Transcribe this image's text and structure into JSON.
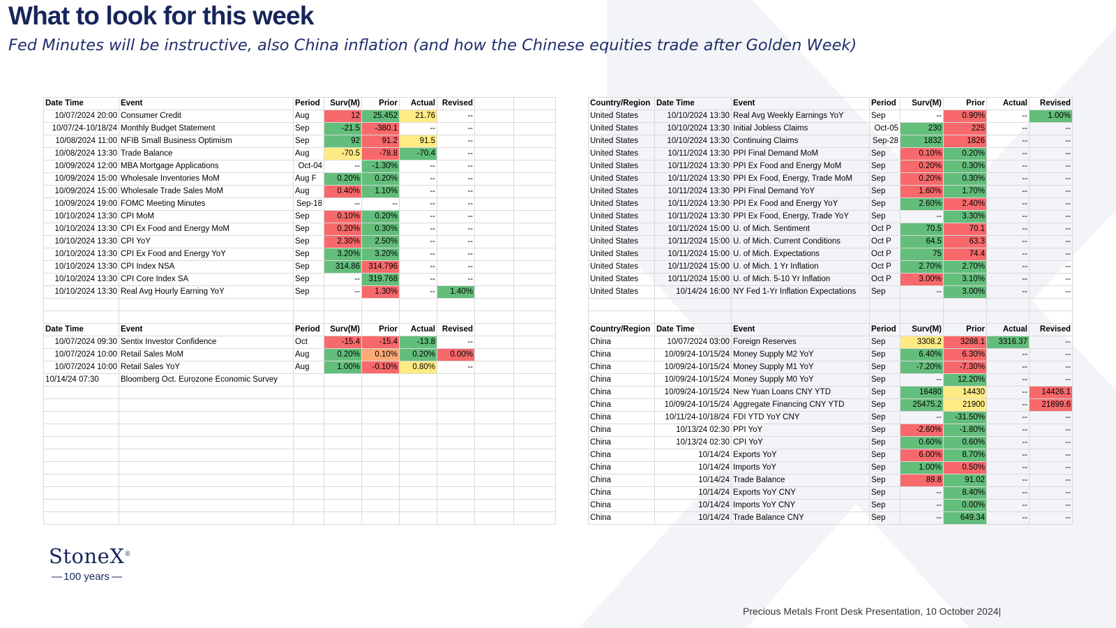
{
  "title": "What to look for this week",
  "subtitle": "Fed Minutes will be instructive, also China inflation (and how the Chinese equities trade after Golden Week)",
  "logo": {
    "name": "StoneX",
    "mark": "®",
    "tagline": "100 years"
  },
  "footer": "Precious Metals Front Desk Presentation, 10 October 2024|",
  "us_table": {
    "headers": [
      "Date Time",
      "Event",
      "Period",
      "Surv(M)",
      "Prior",
      "Actual",
      "Revised"
    ],
    "rows": [
      {
        "dt": "10/07/2024 20:00",
        "event": "Consumer Credit",
        "period": "Aug",
        "surv": "12",
        "prior": "25.452",
        "actual": "21.76",
        "revised": "--",
        "surv_c": "rd",
        "prior_c": "g",
        "actual_c": "y",
        "revised_c": ""
      },
      {
        "dt": "10/07/24-10/18/24",
        "event": "Monthly Budget Statement",
        "period": "Sep",
        "surv": "-21.5",
        "prior": "-380.1",
        "actual": "--",
        "revised": "--",
        "surv_c": "g",
        "prior_c": "rd",
        "actual_c": "",
        "revised_c": ""
      },
      {
        "dt": "10/08/2024 11:00",
        "event": "NFIB Small Business Optimism",
        "period": "Sep",
        "surv": "92",
        "prior": "91.2",
        "actual": "91.5",
        "revised": "--",
        "surv_c": "g",
        "prior_c": "rd",
        "actual_c": "y",
        "revised_c": ""
      },
      {
        "dt": "10/08/2024 13:30",
        "event": "Trade Balance",
        "period": "Aug",
        "surv": "-70.5",
        "prior": "-78.8",
        "actual": "-70.4",
        "revised": "--",
        "surv_c": "y",
        "prior_c": "rd",
        "actual_c": "g",
        "revised_c": ""
      },
      {
        "dt": "10/09/2024 12:00",
        "event": "MBA Mortgage Applications",
        "period": "Oct-04",
        "surv": "--",
        "prior": "-1.30%",
        "actual": "--",
        "revised": "--",
        "surv_c": "",
        "prior_c": "g",
        "actual_c": "",
        "revised_c": ""
      },
      {
        "dt": "10/09/2024 15:00",
        "event": "Wholesale Inventories MoM",
        "period": "Aug F",
        "surv": "0.20%",
        "prior": "0.20%",
        "actual": "--",
        "revised": "--",
        "surv_c": "g",
        "prior_c": "g",
        "actual_c": "",
        "revised_c": ""
      },
      {
        "dt": "10/09/2024 15:00",
        "event": "Wholesale Trade Sales MoM",
        "period": "Aug",
        "surv": "0.40%",
        "prior": "1.10%",
        "actual": "--",
        "revised": "--",
        "surv_c": "rd",
        "prior_c": "g",
        "actual_c": "",
        "revised_c": ""
      },
      {
        "dt": "10/09/2024 19:00",
        "event": "FOMC Meeting Minutes",
        "period": "Sep-18",
        "surv": "--",
        "prior": "--",
        "actual": "--",
        "revised": "--",
        "surv_c": "",
        "prior_c": "",
        "actual_c": "",
        "revised_c": ""
      },
      {
        "dt": "10/10/2024 13:30",
        "event": "CPI MoM",
        "period": "Sep",
        "surv": "0.10%",
        "prior": "0.20%",
        "actual": "--",
        "revised": "--",
        "surv_c": "rd",
        "prior_c": "g",
        "actual_c": "",
        "revised_c": ""
      },
      {
        "dt": "10/10/2024 13:30",
        "event": "CPI Ex Food and Energy MoM",
        "period": "Sep",
        "surv": "0.20%",
        "prior": "0.30%",
        "actual": "--",
        "revised": "--",
        "surv_c": "rd",
        "prior_c": "g",
        "actual_c": "",
        "revised_c": ""
      },
      {
        "dt": "10/10/2024 13:30",
        "event": "CPI YoY",
        "period": "Sep",
        "surv": "2.30%",
        "prior": "2.50%",
        "actual": "--",
        "revised": "--",
        "surv_c": "rd",
        "prior_c": "g",
        "actual_c": "",
        "revised_c": ""
      },
      {
        "dt": "10/10/2024 13:30",
        "event": "CPI Ex Food and Energy YoY",
        "period": "Sep",
        "surv": "3.20%",
        "prior": "3.20%",
        "actual": "--",
        "revised": "--",
        "surv_c": "g",
        "prior_c": "g",
        "actual_c": "",
        "revised_c": ""
      },
      {
        "dt": "10/10/2024 13:30",
        "event": "CPI Index NSA",
        "period": "Sep",
        "surv": "314.86",
        "prior": "314.796",
        "actual": "--",
        "revised": "--",
        "surv_c": "g",
        "prior_c": "rd",
        "actual_c": "",
        "revised_c": ""
      },
      {
        "dt": "10/10/2024 13:30",
        "event": "CPI Core Index SA",
        "period": "Sep",
        "surv": "--",
        "prior": "319.768",
        "actual": "--",
        "revised": "--",
        "surv_c": "",
        "prior_c": "g",
        "actual_c": "",
        "revised_c": ""
      },
      {
        "dt": "10/10/2024 13:30",
        "event": "Real Avg Hourly Earning YoY",
        "period": "Sep",
        "surv": "--",
        "prior": "1.30%",
        "actual": "--",
        "revised": "1.40%",
        "surv_c": "",
        "prior_c": "rd",
        "actual_c": "",
        "revised_c": "g"
      }
    ]
  },
  "eu_table": {
    "headers": [
      "Date Time",
      "Event",
      "Period",
      "Surv(M)",
      "Prior",
      "Actual",
      "Revised"
    ],
    "rows": [
      {
        "dt": "10/07/2024 09:30",
        "event": "Sentix Investor Confidence",
        "period": "Oct",
        "surv": "-15.4",
        "prior": "-15.4",
        "actual": "-13.8",
        "revised": "--",
        "surv_c": "rd",
        "prior_c": "rd",
        "actual_c": "g",
        "revised_c": ""
      },
      {
        "dt": "10/07/2024 10:00",
        "event": "Retail Sales MoM",
        "period": "Aug",
        "surv": "0.20%",
        "prior": "0.10%",
        "actual": "0.20%",
        "revised": "0.00%",
        "surv_c": "g",
        "prior_c": "o",
        "actual_c": "g",
        "revised_c": "rd"
      },
      {
        "dt": "10/07/2024 10:00",
        "event": "Retail Sales YoY",
        "period": "Aug",
        "surv": "1.00%",
        "prior": "-0.10%",
        "actual": "0.80%",
        "revised": "--",
        "surv_c": "g",
        "prior_c": "rd",
        "actual_c": "y",
        "revised_c": ""
      },
      {
        "dt": "10/14/24 07:30",
        "event": "Bloomberg Oct. Eurozone Economic Survey",
        "period": "",
        "surv": "",
        "prior": "",
        "actual": "",
        "revised": "",
        "surv_c": "",
        "prior_c": "",
        "actual_c": "",
        "revised_c": ""
      }
    ]
  },
  "us2_table": {
    "headers": [
      "Country/Region",
      "Date Time",
      "Event",
      "Period",
      "Surv(M)",
      "Prior",
      "Actual",
      "Revised"
    ],
    "rows": [
      {
        "country": "United States",
        "dt": "10/10/2024 13:30",
        "event": "Real Avg Weekly Earnings YoY",
        "period": "Sep",
        "surv": "--",
        "prior": "0.90%",
        "actual": "--",
        "revised": "1.00%",
        "surv_c": "",
        "prior_c": "rd",
        "actual_c": "",
        "revised_c": "g"
      },
      {
        "country": "United States",
        "dt": "10/10/2024 13:30",
        "event": "Initial Jobless Claims",
        "period": "Oct-05",
        "surv": "230",
        "prior": "225",
        "actual": "--",
        "revised": "--",
        "surv_c": "g",
        "prior_c": "rd",
        "actual_c": "",
        "revised_c": ""
      },
      {
        "country": "United States",
        "dt": "10/10/2024 13:30",
        "event": "Continuing Claims",
        "period": "Sep-28",
        "surv": "1832",
        "prior": "1826",
        "actual": "--",
        "revised": "--",
        "surv_c": "g",
        "prior_c": "rd",
        "actual_c": "",
        "revised_c": ""
      },
      {
        "country": "United States",
        "dt": "10/11/2024 13:30",
        "event": "PPI Final Demand MoM",
        "period": "Sep",
        "surv": "0.10%",
        "prior": "0.20%",
        "actual": "--",
        "revised": "--",
        "surv_c": "rd",
        "prior_c": "g",
        "actual_c": "",
        "revised_c": ""
      },
      {
        "country": "United States",
        "dt": "10/11/2024 13:30",
        "event": "PPI Ex Food and Energy MoM",
        "period": "Sep",
        "surv": "0.20%",
        "prior": "0.30%",
        "actual": "--",
        "revised": "--",
        "surv_c": "rd",
        "prior_c": "g",
        "actual_c": "",
        "revised_c": ""
      },
      {
        "country": "United States",
        "dt": "10/11/2024 13:30",
        "event": "PPI Ex Food, Energy, Trade MoM",
        "period": "Sep",
        "surv": "0.20%",
        "prior": "0.30%",
        "actual": "--",
        "revised": "--",
        "surv_c": "rd",
        "prior_c": "g",
        "actual_c": "",
        "revised_c": ""
      },
      {
        "country": "United States",
        "dt": "10/11/2024 13:30",
        "event": "PPI Final Demand YoY",
        "period": "Sep",
        "surv": "1.60%",
        "prior": "1.70%",
        "actual": "--",
        "revised": "--",
        "surv_c": "rd",
        "prior_c": "g",
        "actual_c": "",
        "revised_c": ""
      },
      {
        "country": "United States",
        "dt": "10/11/2024 13:30",
        "event": "PPI Ex Food and Energy YoY",
        "period": "Sep",
        "surv": "2.60%",
        "prior": "2.40%",
        "actual": "--",
        "revised": "--",
        "surv_c": "g",
        "prior_c": "rd",
        "actual_c": "",
        "revised_c": ""
      },
      {
        "country": "United States",
        "dt": "10/11/2024 13:30",
        "event": "PPI Ex Food, Energy, Trade YoY",
        "period": "Sep",
        "surv": "--",
        "prior": "3.30%",
        "actual": "--",
        "revised": "--",
        "surv_c": "",
        "prior_c": "g",
        "actual_c": "",
        "revised_c": ""
      },
      {
        "country": "United States",
        "dt": "10/11/2024 15:00",
        "event": "U. of Mich. Sentiment",
        "period": "Oct P",
        "surv": "70.5",
        "prior": "70.1",
        "actual": "--",
        "revised": "--",
        "surv_c": "g",
        "prior_c": "rd",
        "actual_c": "",
        "revised_c": ""
      },
      {
        "country": "United States",
        "dt": "10/11/2024 15:00",
        "event": "U. of Mich. Current Conditions",
        "period": "Oct P",
        "surv": "64.5",
        "prior": "63.3",
        "actual": "--",
        "revised": "--",
        "surv_c": "g",
        "prior_c": "rd",
        "actual_c": "",
        "revised_c": ""
      },
      {
        "country": "United States",
        "dt": "10/11/2024 15:00",
        "event": "U. of Mich. Expectations",
        "period": "Oct P",
        "surv": "75",
        "prior": "74.4",
        "actual": "--",
        "revised": "--",
        "surv_c": "g",
        "prior_c": "rd",
        "actual_c": "",
        "revised_c": ""
      },
      {
        "country": "United States",
        "dt": "10/11/2024 15:00",
        "event": "U. of Mich. 1 Yr Inflation",
        "period": "Oct P",
        "surv": "2.70%",
        "prior": "2.70%",
        "actual": "--",
        "revised": "--",
        "surv_c": "g",
        "prior_c": "g",
        "actual_c": "",
        "revised_c": ""
      },
      {
        "country": "United States",
        "dt": "10/11/2024 15:00",
        "event": "U. of Mich. 5-10 Yr Inflation",
        "period": "Oct P",
        "surv": "3.00%",
        "prior": "3.10%",
        "actual": "--",
        "revised": "--",
        "surv_c": "rd",
        "prior_c": "g",
        "actual_c": "",
        "revised_c": ""
      },
      {
        "country": "United States",
        "dt": "10/14/24 16:00",
        "event": "NY Fed 1-Yr Inflation Expectations",
        "period": "Sep",
        "surv": "--",
        "prior": "3.00%",
        "actual": "--",
        "revised": "--",
        "surv_c": "",
        "prior_c": "g",
        "actual_c": "",
        "revised_c": ""
      }
    ]
  },
  "china_table": {
    "headers": [
      "Country/Region",
      "Date Time",
      "Event",
      "Period",
      "Surv(M)",
      "Prior",
      "Actual",
      "Revised"
    ],
    "rows": [
      {
        "country": "China",
        "dt": "10/07/2024 03:00",
        "event": "Foreign Reserves",
        "period": "Sep",
        "surv": "3308.2",
        "prior": "3288.1",
        "actual": "3316.37",
        "revised": "--",
        "surv_c": "y",
        "prior_c": "rd",
        "actual_c": "g",
        "revised_c": ""
      },
      {
        "country": "China",
        "dt": "10/09/24-10/15/24",
        "event": "Money Supply M2 YoY",
        "period": "Sep",
        "surv": "6.40%",
        "prior": "6.30%",
        "actual": "--",
        "revised": "--",
        "surv_c": "g",
        "prior_c": "rd",
        "actual_c": "",
        "revised_c": ""
      },
      {
        "country": "China",
        "dt": "10/09/24-10/15/24",
        "event": "Money Supply M1 YoY",
        "period": "Sep",
        "surv": "-7.20%",
        "prior": "-7.30%",
        "actual": "--",
        "revised": "--",
        "surv_c": "g",
        "prior_c": "rd",
        "actual_c": "",
        "revised_c": ""
      },
      {
        "country": "China",
        "dt": "10/09/24-10/15/24",
        "event": "Money Supply M0 YoY",
        "period": "Sep",
        "surv": "--",
        "prior": "12.20%",
        "actual": "--",
        "revised": "--",
        "surv_c": "",
        "prior_c": "g",
        "actual_c": "",
        "revised_c": ""
      },
      {
        "country": "China",
        "dt": "10/09/24-10/15/24",
        "event": "New Yuan Loans CNY YTD",
        "period": "Sep",
        "surv": "16480",
        "prior": "14430",
        "actual": "--",
        "revised": "14426.1",
        "surv_c": "g",
        "prior_c": "y",
        "actual_c": "",
        "revised_c": "rd"
      },
      {
        "country": "China",
        "dt": "10/09/24-10/15/24",
        "event": "Aggregate Financing CNY YTD",
        "period": "Sep",
        "surv": "25475.2",
        "prior": "21900",
        "actual": "--",
        "revised": "21899.6",
        "surv_c": "g",
        "prior_c": "y",
        "actual_c": "",
        "revised_c": "rd"
      },
      {
        "country": "China",
        "dt": "10/11/24-10/18/24",
        "event": "FDI YTD YoY CNY",
        "period": "Sep",
        "surv": "--",
        "prior": "-31.50%",
        "actual": "--",
        "revised": "--",
        "surv_c": "",
        "prior_c": "g",
        "actual_c": "",
        "revised_c": ""
      },
      {
        "country": "China",
        "dt": "10/13/24 02:30",
        "event": "PPI YoY",
        "period": "Sep",
        "surv": "-2.60%",
        "prior": "-1.80%",
        "actual": "--",
        "revised": "--",
        "surv_c": "rd",
        "prior_c": "g",
        "actual_c": "",
        "revised_c": ""
      },
      {
        "country": "China",
        "dt": "10/13/24 02:30",
        "event": "CPI YoY",
        "period": "Sep",
        "surv": "0.60%",
        "prior": "0.60%",
        "actual": "--",
        "revised": "--",
        "surv_c": "g",
        "prior_c": "g",
        "actual_c": "",
        "revised_c": ""
      },
      {
        "country": "China",
        "dt": "10/14/24",
        "event": "Exports YoY",
        "period": "Sep",
        "surv": "6.00%",
        "prior": "8.70%",
        "actual": "--",
        "revised": "--",
        "surv_c": "rd",
        "prior_c": "g",
        "actual_c": "",
        "revised_c": ""
      },
      {
        "country": "China",
        "dt": "10/14/24",
        "event": "Imports YoY",
        "period": "Sep",
        "surv": "1.00%",
        "prior": "0.50%",
        "actual": "--",
        "revised": "--",
        "surv_c": "g",
        "prior_c": "rd",
        "actual_c": "",
        "revised_c": ""
      },
      {
        "country": "China",
        "dt": "10/14/24",
        "event": "Trade Balance",
        "period": "Sep",
        "surv": "89.8",
        "prior": "91.02",
        "actual": "--",
        "revised": "--",
        "surv_c": "rd",
        "prior_c": "g",
        "actual_c": "",
        "revised_c": ""
      },
      {
        "country": "China",
        "dt": "10/14/24",
        "event": "Exports YoY CNY",
        "period": "Sep",
        "surv": "--",
        "prior": "8.40%",
        "actual": "--",
        "revised": "--",
        "surv_c": "",
        "prior_c": "g",
        "actual_c": "",
        "revised_c": ""
      },
      {
        "country": "China",
        "dt": "10/14/24",
        "event": "Imports YoY CNY",
        "period": "Sep",
        "surv": "--",
        "prior": "0.00%",
        "actual": "--",
        "revised": "--",
        "surv_c": "",
        "prior_c": "g",
        "actual_c": "",
        "revised_c": ""
      },
      {
        "country": "China",
        "dt": "10/14/24",
        "event": "Trade Balance CNY",
        "period": "Sep",
        "surv": "--",
        "prior": "649.34",
        "actual": "--",
        "revised": "--",
        "surv_c": "",
        "prior_c": "g",
        "actual_c": "",
        "revised_c": ""
      }
    ]
  }
}
